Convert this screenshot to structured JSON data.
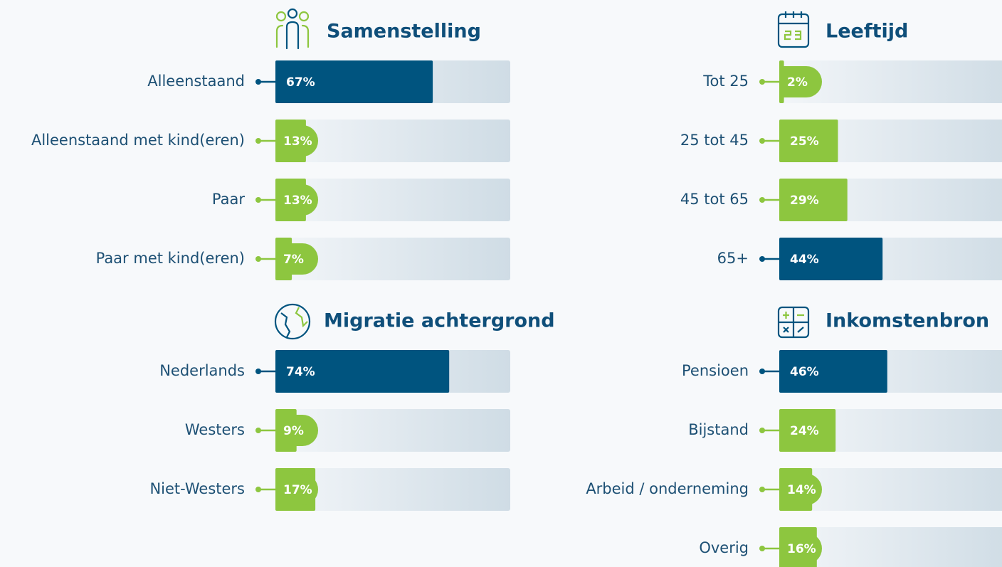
{
  "chart_data": [
    {
      "type": "bar",
      "orientation": "horizontal",
      "title": "Samenstelling",
      "categories": [
        "Alleenstaand",
        "Alleenstaand met kind(eren)",
        "Paar",
        "Paar met kind(eren)"
      ],
      "values": [
        67,
        13,
        13,
        7
      ],
      "value_labels": [
        "67%",
        "13%",
        "13%",
        "7%"
      ],
      "colors": [
        "#00547f",
        "#8dc63f",
        "#8dc63f",
        "#8dc63f"
      ],
      "xlim": [
        0,
        100
      ]
    },
    {
      "type": "bar",
      "orientation": "horizontal",
      "title": "Leeftijd",
      "categories": [
        "Tot 25",
        "25 tot 45",
        "45 tot 65",
        "65+"
      ],
      "values": [
        2,
        25,
        29,
        44
      ],
      "value_labels": [
        "2%",
        "25%",
        "29%",
        "44%"
      ],
      "colors": [
        "#8dc63f",
        "#8dc63f",
        "#8dc63f",
        "#00547f"
      ],
      "xlim": [
        0,
        100
      ]
    },
    {
      "type": "bar",
      "orientation": "horizontal",
      "title": "Migratie achtergrond",
      "categories": [
        "Nederlands",
        "Westers",
        "Niet-Westers"
      ],
      "values": [
        74,
        9,
        17
      ],
      "value_labels": [
        "74%",
        "9%",
        "17%"
      ],
      "colors": [
        "#00547f",
        "#8dc63f",
        "#8dc63f"
      ],
      "xlim": [
        0,
        100
      ]
    },
    {
      "type": "bar",
      "orientation": "horizontal",
      "title": "Inkomstenbron",
      "categories": [
        "Pensioen",
        "Bijstand",
        "Arbeid / onderneming",
        "Overig"
      ],
      "values": [
        46,
        24,
        14,
        16
      ],
      "value_labels": [
        "46%",
        "24%",
        "14%",
        "16%"
      ],
      "colors": [
        "#00547f",
        "#8dc63f",
        "#8dc63f",
        "#8dc63f"
      ],
      "xlim": [
        0,
        100
      ]
    }
  ]
}
